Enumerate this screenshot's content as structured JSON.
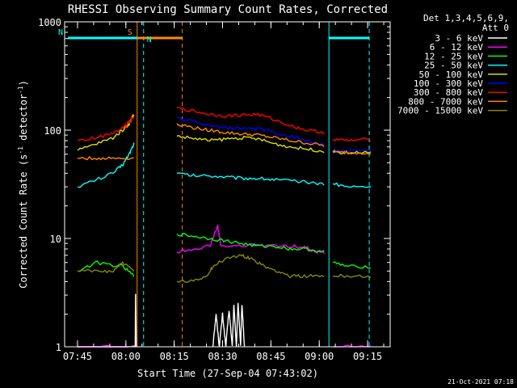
{
  "chart_data": {
    "type": "line",
    "title": "RHESSI Observing Summary Count Rates, Corrected",
    "xlabel": "Start Time (27-Sep-04 07:43:02)",
    "ylabel_parts": [
      "Corrected Count Rate (s",
      "-1",
      " detector",
      "-1",
      ")"
    ],
    "yscale": "log",
    "ylim": [
      1,
      1000
    ],
    "xlim": [
      "07:41",
      "09:22"
    ],
    "x_ticks": [
      "07:45",
      "08:00",
      "08:15",
      "08:30",
      "08:45",
      "09:00",
      "09:15"
    ],
    "y_ticks": [
      "1",
      "10",
      "100",
      "1000"
    ],
    "legend_header": [
      "Det 1,3,4,5,6,9,",
      "Att 0"
    ],
    "legend_position": "right",
    "footer": "21-Oct-2021 07:18",
    "x_unit_note": "x values are minutes after 07:41",
    "gaps": [
      [
        22.5,
        34.5
      ],
      [
        81,
        83
      ]
    ],
    "series": [
      {
        "name": "3 - 6 keV",
        "color": "#ffffff",
        "values": [
          [
            4,
            1.0
          ],
          [
            21.9,
            1.0
          ],
          [
            22,
            3
          ],
          [
            22.2,
            1.0
          ],
          [
            46,
            1.0
          ],
          [
            47,
            2
          ],
          [
            48,
            1.0
          ],
          [
            49,
            2
          ],
          [
            50,
            1.0
          ],
          [
            51,
            2.2
          ],
          [
            52,
            1.0
          ],
          [
            52.5,
            2.4
          ],
          [
            53.3,
            1.0
          ],
          [
            53.8,
            2.6
          ],
          [
            54.6,
            1.0
          ],
          [
            55,
            2.5
          ],
          [
            55.8,
            1.0
          ]
        ]
      },
      {
        "name": "6 - 12 keV",
        "color": "#ff00ff",
        "values": [
          [
            4,
            1.0
          ],
          [
            22,
            1.0
          ],
          [
            34.8,
            7.5
          ],
          [
            40,
            8
          ],
          [
            45,
            8.5
          ],
          [
            47.5,
            13
          ],
          [
            48.5,
            8.5
          ],
          [
            55,
            8.5
          ],
          [
            60,
            8.8
          ],
          [
            65,
            8.5
          ],
          [
            70,
            8.5
          ],
          [
            75,
            8.2
          ],
          [
            78,
            7.5
          ],
          [
            80.5,
            7.5
          ],
          [
            83.2,
            1.0
          ],
          [
            95,
            1.0
          ]
        ]
      },
      {
        "name": "12 - 25 keV",
        "color": "#00ff00",
        "values": [
          [
            4,
            5
          ],
          [
            10,
            6
          ],
          [
            18,
            5.5
          ],
          [
            21.5,
            4.5
          ],
          [
            34.8,
            11
          ],
          [
            40,
            10.5
          ],
          [
            45,
            10
          ],
          [
            50,
            9.5
          ],
          [
            55,
            9
          ],
          [
            60,
            8.5
          ],
          [
            65,
            8.5
          ],
          [
            70,
            8
          ],
          [
            75,
            8
          ],
          [
            80.5,
            7.5
          ],
          [
            83.2,
            6
          ],
          [
            88,
            5.5
          ],
          [
            95,
            5.5
          ]
        ]
      },
      {
        "name": "25 - 50 keV",
        "color": "#00ffff",
        "values": [
          [
            4,
            30
          ],
          [
            10,
            35
          ],
          [
            15,
            40
          ],
          [
            18,
            48
          ],
          [
            20,
            60
          ],
          [
            21.5,
            75
          ],
          [
            34.8,
            40
          ],
          [
            40,
            38
          ],
          [
            45,
            38
          ],
          [
            50,
            37
          ],
          [
            55,
            36
          ],
          [
            60,
            36
          ],
          [
            65,
            35
          ],
          [
            70,
            34
          ],
          [
            75,
            33
          ],
          [
            80.5,
            32
          ],
          [
            83.2,
            32
          ],
          [
            88,
            30
          ],
          [
            95,
            30
          ]
        ]
      },
      {
        "name": "50 - 100 keV",
        "color": "#dddd00",
        "values": [
          [
            4,
            65
          ],
          [
            10,
            75
          ],
          [
            15,
            85
          ],
          [
            18,
            100
          ],
          [
            20,
            115
          ],
          [
            21.5,
            140
          ],
          [
            34.8,
            88
          ],
          [
            40,
            84
          ],
          [
            45,
            80
          ],
          [
            50,
            83
          ],
          [
            55,
            85
          ],
          [
            60,
            83
          ],
          [
            65,
            75
          ],
          [
            70,
            70
          ],
          [
            75,
            67
          ],
          [
            80.5,
            64
          ],
          [
            83.2,
            63
          ],
          [
            88,
            62
          ],
          [
            95,
            62
          ]
        ]
      },
      {
        "name": "100 - 300 keV",
        "color": "#0000ff",
        "values": [
          [
            34.8,
            130
          ],
          [
            40,
            120
          ],
          [
            45,
            110
          ],
          [
            50,
            105
          ],
          [
            55,
            103
          ],
          [
            60,
            103
          ],
          [
            65,
            95
          ],
          [
            70,
            88
          ],
          [
            75,
            80
          ],
          [
            80.5,
            74
          ],
          [
            83.2,
            65
          ],
          [
            88,
            64
          ],
          [
            95,
            65
          ]
        ]
      },
      {
        "name": "300 - 800 keV",
        "color": "#ff0000",
        "values": [
          [
            4,
            80
          ],
          [
            10,
            85
          ],
          [
            15,
            95
          ],
          [
            18,
            105
          ],
          [
            20,
            120
          ],
          [
            21.5,
            135
          ],
          [
            34.8,
            160
          ],
          [
            40,
            150
          ],
          [
            45,
            140
          ],
          [
            50,
            135
          ],
          [
            55,
            138
          ],
          [
            60,
            140
          ],
          [
            65,
            125
          ],
          [
            70,
            110
          ],
          [
            75,
            100
          ],
          [
            80.5,
            95
          ],
          [
            83.2,
            82
          ],
          [
            88,
            80
          ],
          [
            95,
            82
          ]
        ]
      },
      {
        "name": "800 - 7000 keV",
        "color": "#ff8800",
        "values": [
          [
            4,
            55
          ],
          [
            10,
            55
          ],
          [
            15,
            55
          ],
          [
            21.5,
            55
          ],
          [
            34.8,
            115
          ],
          [
            40,
            105
          ],
          [
            45,
            100
          ],
          [
            50,
            95
          ],
          [
            55,
            92
          ],
          [
            60,
            90
          ],
          [
            65,
            85
          ],
          [
            70,
            80
          ],
          [
            75,
            76
          ],
          [
            80.5,
            72
          ],
          [
            83.2,
            62
          ],
          [
            88,
            62
          ],
          [
            95,
            62
          ]
        ]
      },
      {
        "name": "7000 - 15000 keV",
        "color": "#888800",
        "values": [
          [
            4,
            5
          ],
          [
            10,
            5
          ],
          [
            15,
            5
          ],
          [
            18,
            6
          ],
          [
            21.5,
            5
          ],
          [
            34.8,
            4
          ],
          [
            40,
            4
          ],
          [
            44,
            4.5
          ],
          [
            46,
            5.5
          ],
          [
            50,
            6.5
          ],
          [
            55,
            7
          ],
          [
            58,
            6.5
          ],
          [
            62,
            5.5
          ],
          [
            66,
            5
          ],
          [
            70,
            4.5
          ],
          [
            75,
            4.5
          ],
          [
            80.5,
            4.5
          ],
          [
            83.2,
            4.5
          ],
          [
            88,
            4.5
          ],
          [
            95,
            4.5
          ]
        ]
      }
    ],
    "flag_bars": [
      {
        "label": "S",
        "color": "#ff8800",
        "x": [
          22.5,
          36.5
        ]
      },
      {
        "label": "N",
        "color": "#00ffff",
        "x": [
          1,
          22.5
        ]
      },
      {
        "label": "",
        "color": "#00ffff",
        "x": [
          82,
          94.5
        ]
      }
    ],
    "vertical_lines": [
      {
        "color": "#ff8800",
        "x": 22.5,
        "dashed": false
      },
      {
        "color": "#00ffff",
        "x": 24.5,
        "dashed": true
      },
      {
        "color": "#ff8800",
        "x": 36.5,
        "dashed": true
      },
      {
        "color": "#00ffff",
        "x": 82,
        "dashed": false
      },
      {
        "color": "#00ffff",
        "x": 94.5,
        "dashed": true
      }
    ]
  }
}
